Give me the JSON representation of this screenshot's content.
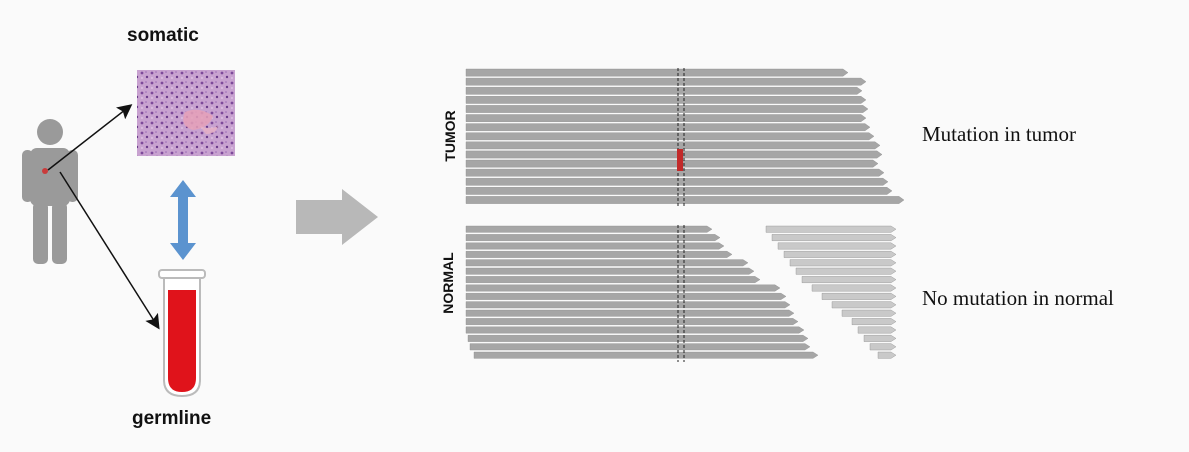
{
  "labels": {
    "somatic": "somatic",
    "germline": "germline",
    "tumor": "TUMOR",
    "normal": "NORMAL",
    "mutation_tumor": "Mutation in tumor",
    "no_mutation_normal": "No mutation in normal"
  },
  "colors": {
    "figure": "#9a9a9a",
    "blood": "#e0131b",
    "double_arrow": "#5b93cf",
    "big_arrow": "#b8b8b8",
    "read": "#a6a6a6",
    "read_light": "#c9c9c9",
    "mutation": "#c22a2a"
  },
  "icons": {
    "person": "person-icon",
    "tissue": "tissue-slide-icon",
    "tube": "blood-tube-icon"
  }
}
